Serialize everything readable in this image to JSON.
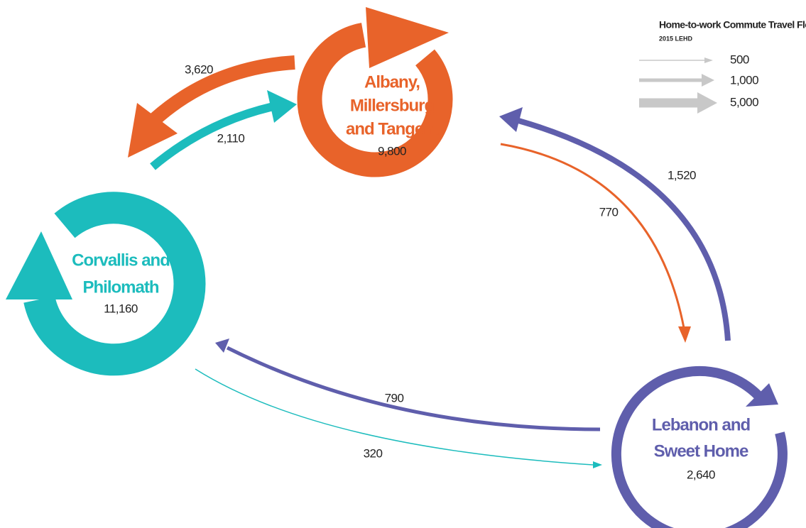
{
  "legend": {
    "title": "Home-to-work Commute Travel Flows",
    "subtitle": "2015 LEHD",
    "entries": [
      "500",
      "1,000",
      "5,000"
    ]
  },
  "nodes": [
    {
      "name_lines": [
        "Albany,",
        "Millersburg",
        "and Tangent"
      ],
      "value": "9,800"
    },
    {
      "name_lines": [
        "Corvallis and",
        "Philomath"
      ],
      "value": "11,160"
    },
    {
      "name_lines": [
        "Lebanon and",
        "Sweet Home"
      ],
      "value": "2,640"
    }
  ],
  "flows": [
    "3,620",
    "2,110",
    "1,520",
    "770",
    "790",
    "320"
  ]
}
